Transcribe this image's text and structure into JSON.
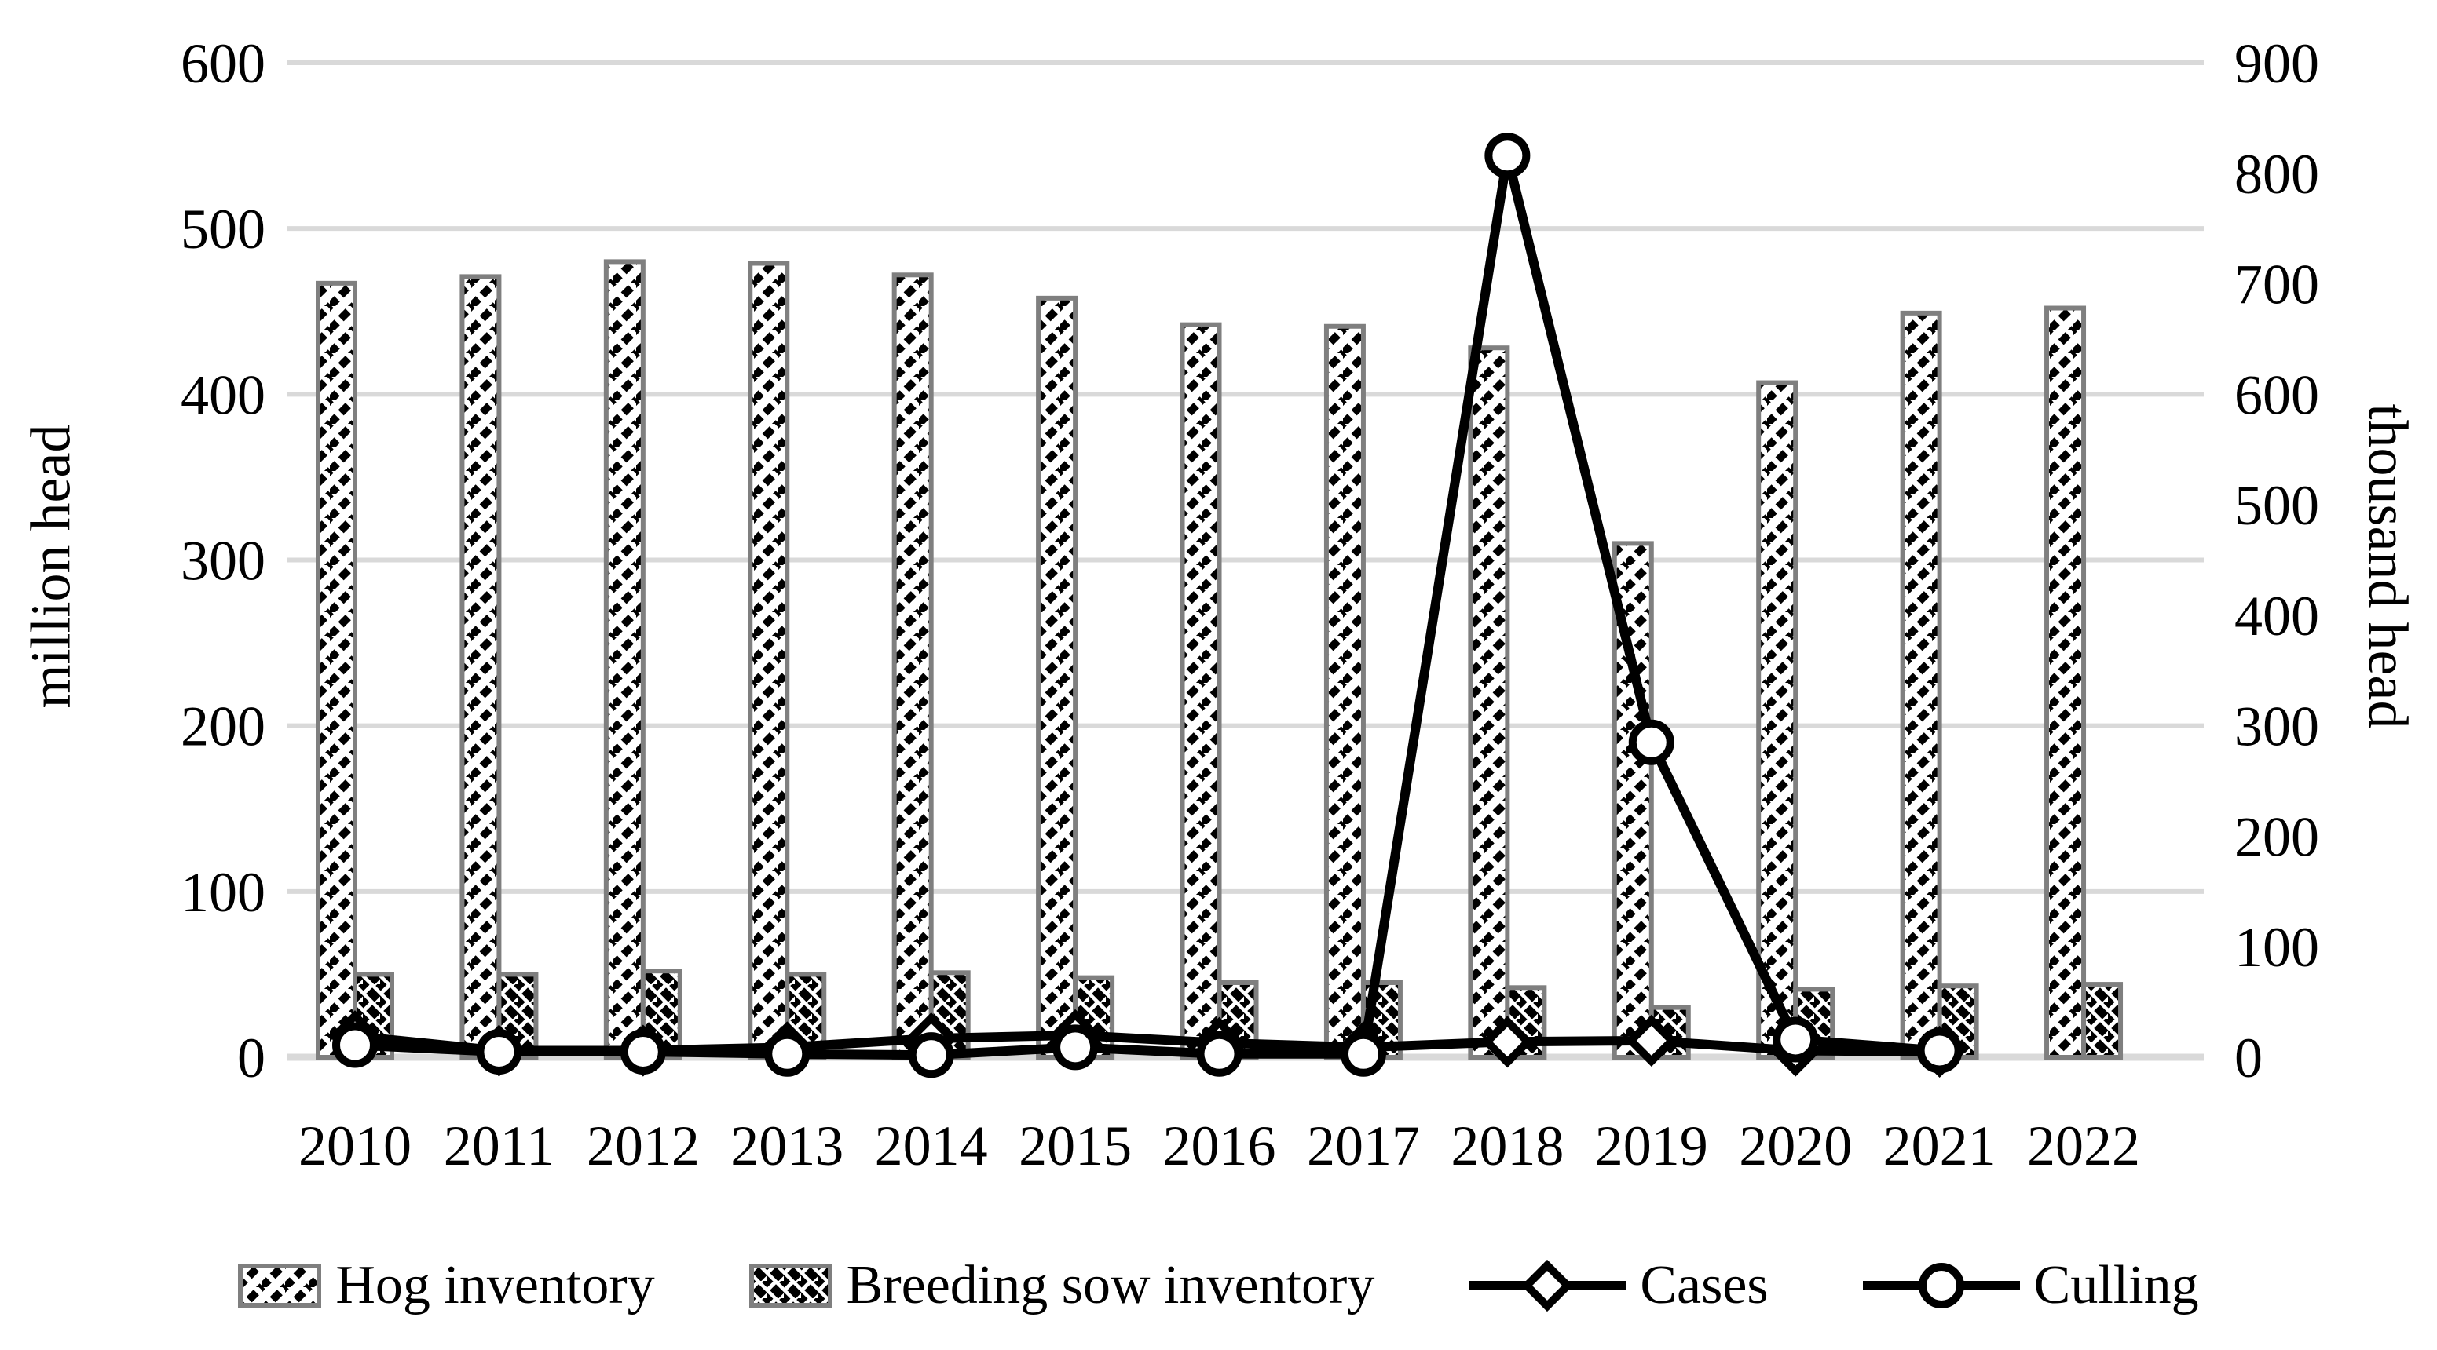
{
  "figure": {
    "left_axis_title": "million head",
    "right_axis_title": "thousand head",
    "legend": {
      "hog_label": "Hog inventory",
      "sow_label": "Breeding sow inventory",
      "cases_label": "Cases",
      "culling_label": "Culling"
    }
  },
  "chart_data": {
    "type": "bar",
    "subtype": "clustered-bar-with-lines",
    "title": "",
    "xlabel": "",
    "ylabel": "million head",
    "ylabel_right": "thousand head",
    "categories": [
      "2010",
      "2011",
      "2012",
      "2013",
      "2014",
      "2015",
      "2016",
      "2017",
      "2018",
      "2019",
      "2020",
      "2021",
      "2022"
    ],
    "left_axis": {
      "label": "million head",
      "min": 0,
      "max": 600,
      "tick_step": 100,
      "ticks": [
        "0",
        "100",
        "200",
        "300",
        "400",
        "500",
        "600"
      ]
    },
    "right_axis": {
      "label": "thousand head",
      "min": 0,
      "max": 900,
      "tick_step": 100,
      "ticks": [
        "0",
        "100",
        "200",
        "300",
        "400",
        "500",
        "600",
        "700",
        "800",
        "900"
      ]
    },
    "grid": true,
    "legend_position": "bottom",
    "series": [
      {
        "name": "Hog inventory",
        "type": "bar",
        "axis": "left",
        "pattern": "diagonal-forward-hatch",
        "values": [
          467,
          471,
          480,
          479,
          472,
          458,
          442,
          441,
          428,
          310,
          407,
          449,
          452
        ]
      },
      {
        "name": "Breeding sow inventory",
        "type": "bar",
        "axis": "left",
        "pattern": "diagonal-back-hatch",
        "values": [
          50,
          50,
          52,
          50,
          51,
          48,
          45,
          45,
          42,
          30,
          41,
          43,
          44
        ]
      },
      {
        "name": "Cases",
        "type": "line",
        "axis": "right",
        "marker": "diamond",
        "values": [
          19,
          6,
          6,
          9,
          17,
          20,
          13,
          9,
          14,
          15,
          6,
          5,
          null
        ]
      },
      {
        "name": "Culling",
        "type": "line",
        "axis": "right",
        "marker": "circle",
        "values": [
          11,
          5,
          5,
          3,
          2,
          9,
          3,
          3,
          816,
          285,
          16,
          6,
          null
        ]
      }
    ]
  },
  "colors": {
    "line": "#000000",
    "bar_border": "#7f7f7f",
    "gridline": "#d9d9d9",
    "text": "#000000",
    "background": "#ffffff"
  }
}
